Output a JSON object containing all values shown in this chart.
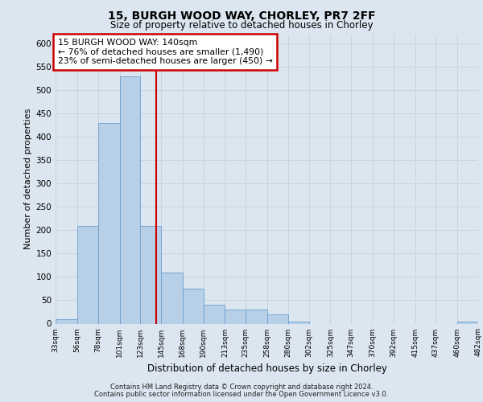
{
  "title_line1": "15, BURGH WOOD WAY, CHORLEY, PR7 2FF",
  "title_line2": "Size of property relative to detached houses in Chorley",
  "xlabel": "Distribution of detached houses by size in Chorley",
  "ylabel": "Number of detached properties",
  "footer_line1": "Contains HM Land Registry data © Crown copyright and database right 2024.",
  "footer_line2": "Contains public sector information licensed under the Open Government Licence v3.0.",
  "annotation_line1": "15 BURGH WOOD WAY: 140sqm",
  "annotation_line2": "← 76% of detached houses are smaller (1,490)",
  "annotation_line3": "23% of semi-detached houses are larger (450) →",
  "property_size": 140,
  "bar_color": "#b8cfe8",
  "bar_edge_color": "#6a9fd0",
  "vline_color": "#cc0000",
  "annotation_box_color": "#cc0000",
  "background_color": "#dce6f0",
  "grid_color": "#c8d4e0",
  "bin_edges": [
    33,
    56,
    78,
    101,
    123,
    145,
    168,
    190,
    213,
    235,
    258,
    280,
    302,
    325,
    347,
    370,
    392,
    415,
    437,
    460,
    482
  ],
  "bar_heights": [
    10,
    210,
    430,
    530,
    210,
    110,
    75,
    40,
    30,
    30,
    20,
    5,
    0,
    0,
    0,
    0,
    0,
    0,
    0,
    5
  ],
  "ylim": [
    0,
    620
  ],
  "yticks": [
    0,
    50,
    100,
    150,
    200,
    250,
    300,
    350,
    400,
    450,
    500,
    550,
    600
  ]
}
